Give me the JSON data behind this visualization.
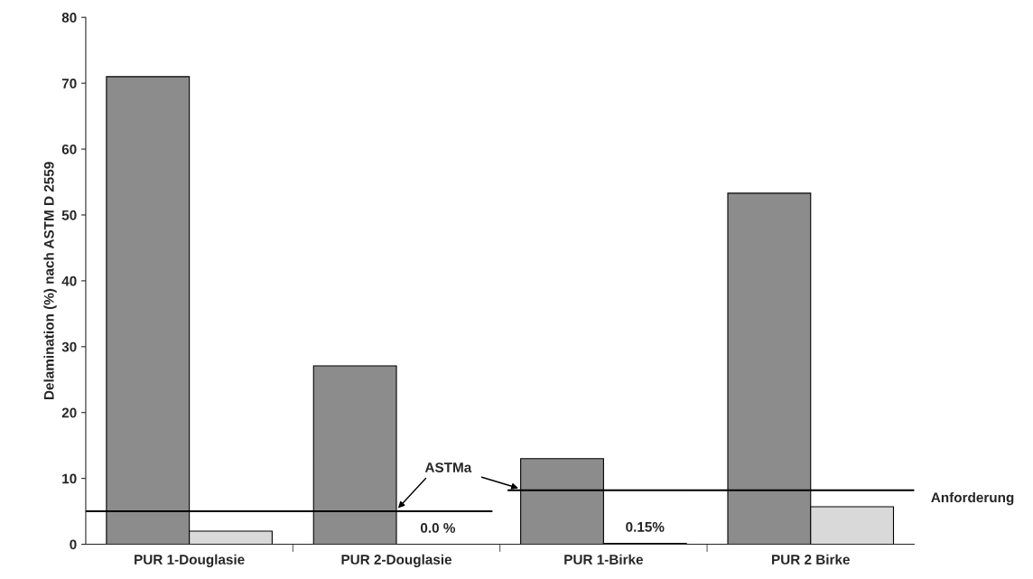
{
  "chart_data": {
    "type": "bar",
    "ylabel": "Delamination (%) nach ASTM D 2559",
    "categories": [
      "PUR 1-Douglasie",
      "PUR 2-Douglasie",
      "PUR 1-Birke",
      "PUR 2 Birke"
    ],
    "series": [
      {
        "color": "#8c8c8c",
        "values": [
          71,
          27.1,
          13,
          53.3
        ]
      },
      {
        "color": "#d9d9d9",
        "values": [
          2,
          0,
          0.15,
          5.7
        ],
        "value_labels": [
          null,
          "0.0 %",
          "0.15%",
          null
        ]
      }
    ],
    "ylim": [
      0,
      80
    ],
    "yticks": [
      0,
      10,
      20,
      30,
      40,
      50,
      60,
      70,
      80
    ],
    "grid": false,
    "ref_lines": [
      {
        "axis": "y",
        "value": 5,
        "color": "#000000"
      },
      {
        "axis": "y",
        "value": 8.2,
        "label": "Anforderung",
        "color": "#000000"
      }
    ],
    "annotations": [
      {
        "text": "ASTMa",
        "y": 5
      }
    ]
  }
}
